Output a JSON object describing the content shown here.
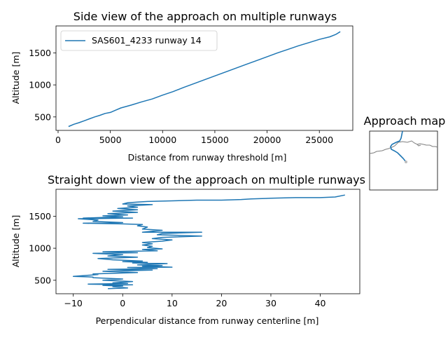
{
  "colors": {
    "series": "#1f77b4",
    "map_coast": "#7f7f7f",
    "map_point": "#bdbdbd"
  },
  "chart_data": [
    {
      "type": "line",
      "title": "Side view of the approach on multiple runways",
      "xlabel": "Distance from runway threshold [m]",
      "ylabel": "Altitude [m]",
      "xlim": [
        -200,
        28200
      ],
      "ylim": [
        290,
        1920
      ],
      "xticks": [
        0,
        5000,
        10000,
        15000,
        20000,
        25000
      ],
      "yticks": [
        500,
        1000,
        1500
      ],
      "legend": "top-left",
      "series": [
        {
          "name": "SAS601_4233 runway 14",
          "x": [
            1000,
            1500,
            2000,
            2500,
            3000,
            3500,
            4000,
            4500,
            5000,
            5500,
            6000,
            7000,
            8000,
            9000,
            10000,
            11000,
            12000,
            13000,
            14000,
            15000,
            16000,
            17000,
            18000,
            19000,
            20000,
            21000,
            22000,
            23000,
            24000,
            25000,
            26000,
            26600,
            27000
          ],
          "y": [
            350,
            385,
            410,
            440,
            470,
            500,
            525,
            555,
            570,
            605,
            640,
            685,
            735,
            780,
            840,
            895,
            960,
            1020,
            1080,
            1140,
            1200,
            1260,
            1320,
            1380,
            1440,
            1500,
            1555,
            1610,
            1660,
            1710,
            1750,
            1790,
            1830
          ]
        }
      ]
    },
    {
      "type": "line",
      "title": "Straight down view of the approach on multiple runways",
      "xlabel": "Perpendicular distance from runway centerline [m]",
      "ylabel": "Altitude [m]",
      "xlim": [
        -13.5,
        48
      ],
      "ylim": [
        290,
        1920
      ],
      "xticks": [
        -10,
        0,
        10,
        20,
        30,
        40
      ],
      "yticks": [
        500,
        1000,
        1500
      ],
      "series": [
        {
          "x": [
            45,
            43,
            40,
            35,
            30,
            26,
            24,
            20,
            15,
            10,
            5,
            3,
            1,
            0,
            6,
            1,
            3,
            -1,
            3,
            -2,
            3,
            -3,
            1,
            -4,
            0,
            -8,
            2,
            -9,
            -5,
            -6,
            0,
            -8,
            0,
            4,
            3,
            5,
            4,
            8,
            4,
            16,
            8,
            7,
            16,
            8,
            6,
            10,
            8,
            4,
            6,
            4,
            6,
            5,
            8,
            4,
            7,
            -4,
            3,
            -6,
            0,
            -3,
            3,
            -5,
            -2,
            4,
            0,
            5,
            2,
            9,
            3,
            8,
            4,
            10,
            1,
            7,
            -3,
            6,
            -4,
            3,
            -6,
            -5,
            -10,
            -6,
            -6,
            0,
            -4,
            2,
            -2,
            1,
            -7,
            2,
            -4,
            0,
            -2,
            1,
            -3
          ],
          "y": [
            1830,
            1800,
            1790,
            1790,
            1780,
            1770,
            1760,
            1750,
            1750,
            1740,
            1730,
            1720,
            1710,
            1690,
            1680,
            1660,
            1640,
            1620,
            1600,
            1580,
            1560,
            1540,
            1520,
            1505,
            1490,
            1470,
            1470,
            1460,
            1440,
            1420,
            1400,
            1390,
            1380,
            1370,
            1350,
            1330,
            1300,
            1280,
            1250,
            1250,
            1230,
            1210,
            1190,
            1170,
            1150,
            1130,
            1110,
            1090,
            1070,
            1050,
            1030,
            1010,
            990,
            980,
            960,
            945,
            930,
            920,
            900,
            880,
            860,
            840,
            820,
            800,
            790,
            780,
            770,
            760,
            740,
            730,
            720,
            705,
            700,
            680,
            670,
            660,
            640,
            620,
            600,
            590,
            560,
            550,
            540,
            520,
            500,
            480,
            460,
            450,
            440,
            430,
            420,
            410,
            400,
            380,
            370
          ]
        }
      ]
    },
    {
      "type": "map",
      "title": "Approach map"
    }
  ]
}
